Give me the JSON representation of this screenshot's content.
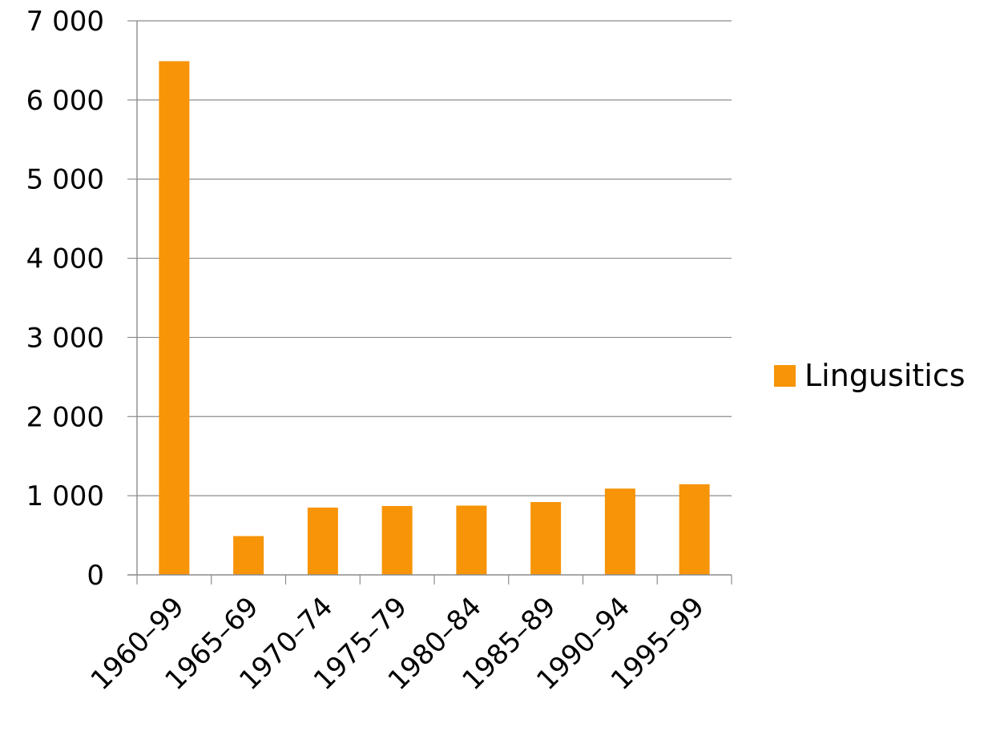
{
  "chart_data": {
    "type": "bar",
    "title": "",
    "xlabel": "",
    "ylabel": "",
    "categories": [
      "1960–99",
      "1965–69",
      "1970–74",
      "1975–79",
      "1980–84",
      "1985–89",
      "1990–94",
      "1995–99"
    ],
    "series": [
      {
        "name": "Lingusitics",
        "color": "#f79407",
        "values": [
          6490,
          490,
          850,
          870,
          875,
          920,
          1090,
          1145
        ]
      }
    ],
    "ylim": [
      0,
      7000
    ],
    "yticks": [
      0,
      1000,
      2000,
      3000,
      4000,
      5000,
      6000,
      7000
    ],
    "ytick_labels": [
      "0",
      "1 000",
      "2 000",
      "3 000",
      "4 000",
      "5 000",
      "6 000",
      "7 000"
    ],
    "grid": true,
    "legend_position": "right"
  }
}
